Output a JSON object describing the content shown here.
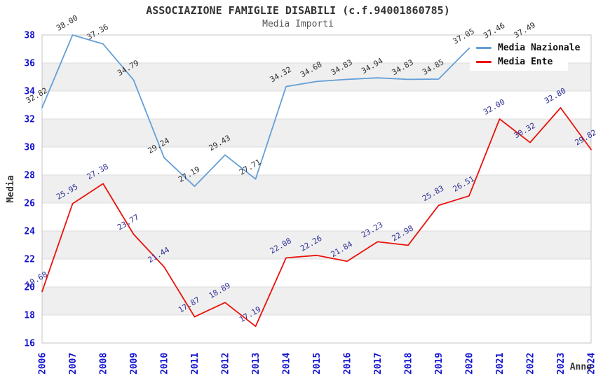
{
  "title": "ASSOCIAZIONE FAMIGLIE DISABILI (c.f.94001860785)",
  "subtitle": "Media Importi",
  "colors": {
    "nazionale_line": "#639fd6",
    "ente_line": "#ea120b",
    "nazionale_label": "#333333",
    "ente_label": "#333399",
    "axis_tick": "#1212d0",
    "band_gray": "#efefef",
    "gridline": "#dddddd",
    "plot_border": "#c6c6c6",
    "title_text": "#333333",
    "subtitle_text": "#555555"
  },
  "chart_data": {
    "type": "line",
    "title": "ASSOCIAZIONE FAMIGLIE DISABILI (c.f.94001860785)",
    "subtitle": "Media Importi",
    "xlabel": "Anno",
    "ylabel": "Media",
    "x": [
      2006,
      2007,
      2008,
      2009,
      2010,
      2011,
      2012,
      2013,
      2014,
      2015,
      2016,
      2017,
      2018,
      2019,
      2020,
      2021,
      2022,
      2023,
      2024
    ],
    "ylim": [
      16,
      38
    ],
    "ytick_step": 2,
    "grid": "horizontal-bands-alternating",
    "legend_position": "top-right-inside",
    "series": [
      {
        "name": "Media Nazionale",
        "color": "#639fd6",
        "label_color": "#333333",
        "values": [
          32.82,
          38.0,
          37.36,
          34.79,
          29.24,
          27.19,
          29.43,
          27.71,
          34.32,
          34.68,
          34.83,
          34.94,
          34.83,
          34.85,
          37.05,
          37.46,
          37.49,
          null,
          null
        ]
      },
      {
        "name": "Media Ente",
        "color": "#ea120b",
        "label_color": "#333399",
        "values": [
          19.68,
          25.95,
          27.38,
          23.77,
          21.44,
          17.87,
          18.89,
          17.19,
          22.08,
          22.26,
          21.84,
          23.23,
          22.98,
          25.83,
          26.51,
          32.0,
          30.32,
          32.8,
          29.82
        ]
      }
    ]
  }
}
